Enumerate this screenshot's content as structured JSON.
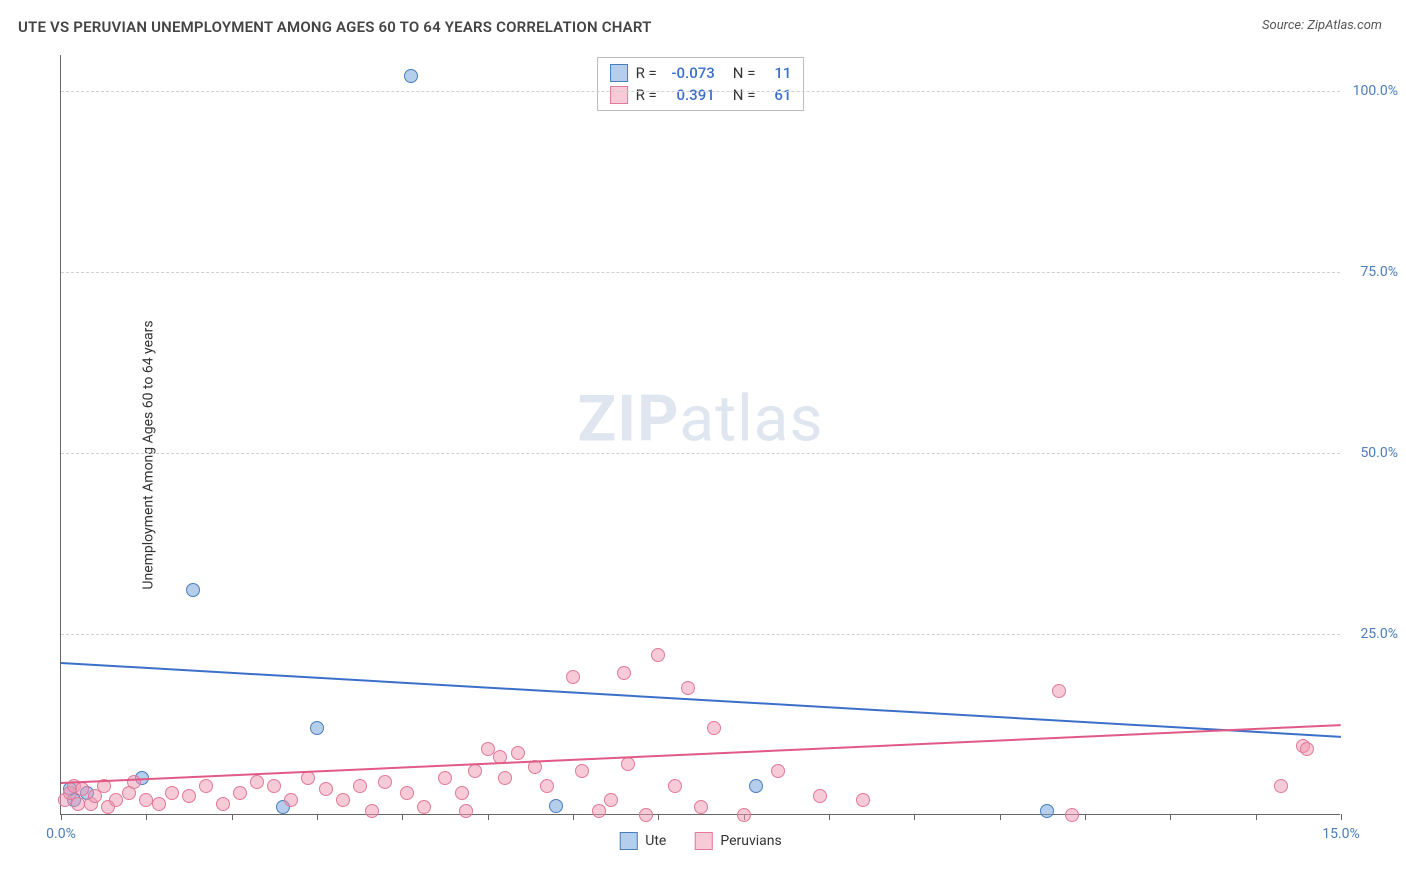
{
  "header": {
    "title": "UTE VS PERUVIAN UNEMPLOYMENT AMONG AGES 60 TO 64 YEARS CORRELATION CHART",
    "source": "Source: ZipAtlas.com"
  },
  "chart": {
    "type": "scatter",
    "ylabel": "Unemployment Among Ages 60 to 64 years",
    "xlim": [
      0,
      15
    ],
    "ylim": [
      0,
      105
    ],
    "xtick_step": 1,
    "xtick_labels": [
      {
        "x": 0,
        "label": "0.0%"
      },
      {
        "x": 15,
        "label": "15.0%"
      }
    ],
    "ytick_labels": [
      {
        "y": 25,
        "label": "25.0%"
      },
      {
        "y": 50,
        "label": "50.0%"
      },
      {
        "y": 75,
        "label": "75.0%"
      },
      {
        "y": 100,
        "label": "100.0%"
      }
    ],
    "grid_y": [
      25,
      50,
      75,
      100
    ],
    "grid_color": "#d0d0d0",
    "background_color": "#ffffff",
    "watermark": {
      "zip": "ZIP",
      "atlas": "atlas"
    },
    "series": [
      {
        "name": "Ute",
        "marker_fill": "rgba(120,165,220,0.55)",
        "marker_stroke": "#4a7ebb",
        "marker_size": 14,
        "trend_color": "#3b6fc9",
        "trend_width": 2,
        "R": "-0.073",
        "N": "11",
        "trend": {
          "x1": 0,
          "y1": 21.2,
          "x2": 15,
          "y2": 11.0
        },
        "points": [
          {
            "x": 0.1,
            "y": 5.5
          },
          {
            "x": 0.15,
            "y": 4.0
          },
          {
            "x": 0.3,
            "y": 5.0
          },
          {
            "x": 0.95,
            "y": 7.0
          },
          {
            "x": 1.55,
            "y": 33.0
          },
          {
            "x": 2.6,
            "y": 3.0
          },
          {
            "x": 3.0,
            "y": 14.0
          },
          {
            "x": 4.1,
            "y": 104.0
          },
          {
            "x": 5.8,
            "y": 3.2
          },
          {
            "x": 8.15,
            "y": 6.0
          },
          {
            "x": 11.55,
            "y": 2.5
          }
        ]
      },
      {
        "name": "Peruvians",
        "marker_fill": "rgba(240,150,175,0.5)",
        "marker_stroke": "#e07a9a",
        "marker_size": 14,
        "trend_color": "#e05a85",
        "trend_width": 2,
        "R": "0.391",
        "N": "61",
        "trend": {
          "x1": 0,
          "y1": 4.5,
          "x2": 15,
          "y2": 12.5
        },
        "points": [
          {
            "x": 0.05,
            "y": 4.0
          },
          {
            "x": 0.1,
            "y": 5.0
          },
          {
            "x": 0.15,
            "y": 6.0
          },
          {
            "x": 0.2,
            "y": 3.5
          },
          {
            "x": 0.25,
            "y": 5.5
          },
          {
            "x": 0.35,
            "y": 3.5
          },
          {
            "x": 0.4,
            "y": 4.5
          },
          {
            "x": 0.5,
            "y": 6.0
          },
          {
            "x": 0.55,
            "y": 3.0
          },
          {
            "x": 0.65,
            "y": 4.0
          },
          {
            "x": 0.8,
            "y": 5.0
          },
          {
            "x": 0.85,
            "y": 6.5
          },
          {
            "x": 1.0,
            "y": 4.0
          },
          {
            "x": 1.15,
            "y": 3.5
          },
          {
            "x": 1.3,
            "y": 5.0
          },
          {
            "x": 1.5,
            "y": 4.5
          },
          {
            "x": 1.7,
            "y": 6.0
          },
          {
            "x": 1.9,
            "y": 3.5
          },
          {
            "x": 2.1,
            "y": 5.0
          },
          {
            "x": 2.3,
            "y": 6.5
          },
          {
            "x": 2.5,
            "y": 6.0
          },
          {
            "x": 2.7,
            "y": 4.0
          },
          {
            "x": 2.9,
            "y": 7.0
          },
          {
            "x": 3.1,
            "y": 5.5
          },
          {
            "x": 3.3,
            "y": 4.0
          },
          {
            "x": 3.5,
            "y": 6.0
          },
          {
            "x": 3.65,
            "y": 2.5
          },
          {
            "x": 3.8,
            "y": 6.5
          },
          {
            "x": 4.05,
            "y": 5.0
          },
          {
            "x": 4.25,
            "y": 3.0
          },
          {
            "x": 4.5,
            "y": 7.0
          },
          {
            "x": 4.7,
            "y": 5.0
          },
          {
            "x": 4.75,
            "y": 2.5
          },
          {
            "x": 4.85,
            "y": 8.0
          },
          {
            "x": 5.0,
            "y": 11.0
          },
          {
            "x": 5.15,
            "y": 10.0
          },
          {
            "x": 5.2,
            "y": 7.0
          },
          {
            "x": 5.35,
            "y": 10.5
          },
          {
            "x": 5.55,
            "y": 8.5
          },
          {
            "x": 5.7,
            "y": 6.0
          },
          {
            "x": 6.0,
            "y": 21.0
          },
          {
            "x": 6.1,
            "y": 8.0
          },
          {
            "x": 6.3,
            "y": 2.5
          },
          {
            "x": 6.45,
            "y": 4.0
          },
          {
            "x": 6.6,
            "y": 21.5
          },
          {
            "x": 6.65,
            "y": 9.0
          },
          {
            "x": 6.85,
            "y": 2.0
          },
          {
            "x": 7.0,
            "y": 24.0
          },
          {
            "x": 7.2,
            "y": 6.0
          },
          {
            "x": 7.35,
            "y": 19.5
          },
          {
            "x": 7.5,
            "y": 3.0
          },
          {
            "x": 7.65,
            "y": 14.0
          },
          {
            "x": 8.0,
            "y": 2.0
          },
          {
            "x": 8.4,
            "y": 8.0
          },
          {
            "x": 8.9,
            "y": 4.5
          },
          {
            "x": 9.4,
            "y": 4.0
          },
          {
            "x": 11.7,
            "y": 19.0
          },
          {
            "x": 11.85,
            "y": 2.0
          },
          {
            "x": 14.3,
            "y": 6.0
          },
          {
            "x": 14.55,
            "y": 11.5
          },
          {
            "x": 14.6,
            "y": 11.0
          }
        ]
      }
    ],
    "legend_bottom": [
      {
        "label": "Ute",
        "fill": "rgba(120,165,220,0.55)",
        "stroke": "#4a7ebb"
      },
      {
        "label": "Peruvians",
        "fill": "rgba(240,150,175,0.5)",
        "stroke": "#e07a9a"
      }
    ]
  }
}
